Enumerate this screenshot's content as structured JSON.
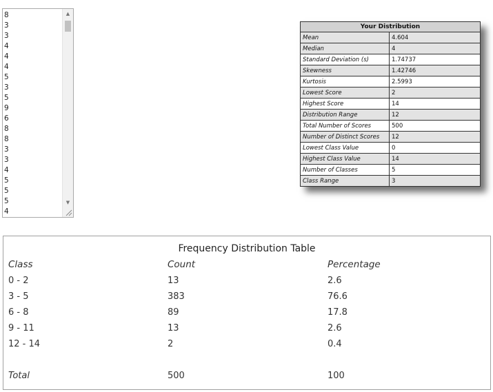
{
  "score_list": {
    "visible_values": [
      "8",
      "3",
      "3",
      "4",
      "4",
      "4",
      "5",
      "3",
      "5",
      "9",
      "6",
      "8",
      "8",
      "3",
      "3",
      "4",
      "5",
      "5",
      "5",
      "4"
    ],
    "scrollbar": {
      "up_icon": "arrow-up-icon",
      "down_icon": "arrow-down-icon"
    }
  },
  "stats_table": {
    "title": "Your Distribution",
    "rows": [
      {
        "label": "Mean",
        "value": "4.604"
      },
      {
        "label": "Median",
        "value": "4"
      },
      {
        "label": "Standard Deviation (s)",
        "value": "1.74737"
      },
      {
        "label": "Skewness",
        "value": "1.42746"
      },
      {
        "label": "Kurtosis",
        "value": "2.5993"
      },
      {
        "label": "Lowest Score",
        "value": "2"
      },
      {
        "label": "Highest Score",
        "value": "14"
      },
      {
        "label": "Distribution Range",
        "value": "12"
      },
      {
        "label": "Total Number of Scores",
        "value": "500"
      },
      {
        "label": "Number of Distinct Scores",
        "value": "12"
      },
      {
        "label": "Lowest Class Value",
        "value": "0"
      },
      {
        "label": "Highest Class Value",
        "value": "14"
      },
      {
        "label": "Number of Classes",
        "value": "5"
      },
      {
        "label": "Class Range",
        "value": "3"
      }
    ]
  },
  "frequency_table": {
    "title": "Frequency Distribution Table",
    "headers": [
      "Class",
      "Count",
      "Percentage"
    ],
    "rows": [
      [
        "0 - 2",
        "13",
        "2.6"
      ],
      [
        "3 - 5",
        "383",
        "76.6"
      ],
      [
        "6 - 8",
        "89",
        "17.8"
      ],
      [
        "9 - 11",
        "13",
        "2.6"
      ],
      [
        "12 - 14",
        "2",
        "0.4"
      ]
    ],
    "total": [
      "Total",
      "500",
      "100"
    ]
  }
}
